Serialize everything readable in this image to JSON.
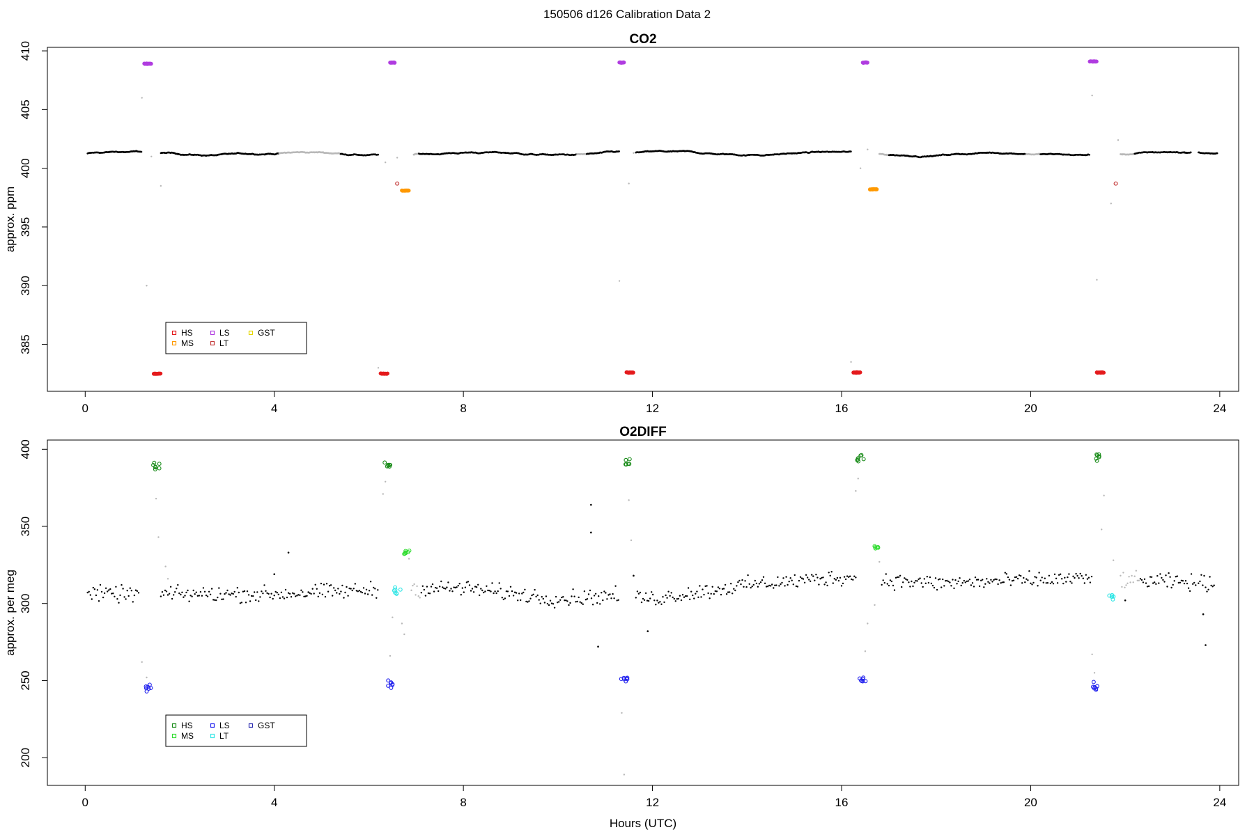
{
  "figure": {
    "title": "150506   d126   Calibration Data 2"
  },
  "colors": {
    "base": "#000000",
    "grey": "#b8b8b8"
  },
  "chart_data": [
    {
      "id": "co2",
      "type": "scatter",
      "title": "CO2",
      "xlabel": "",
      "ylabel": "approx. ppm",
      "xlim": [
        -0.8,
        24.4
      ],
      "ylim": [
        381,
        410.3
      ],
      "xticks": [
        0,
        4,
        8,
        12,
        16,
        20,
        24
      ],
      "yticks": [
        385,
        390,
        395,
        400,
        405,
        410
      ],
      "legend": {
        "placement": "bottom-left",
        "entries": [
          {
            "label": "HS",
            "color": "#e41a1c"
          },
          {
            "label": "MS",
            "color": "#ff9900"
          },
          {
            "label": "LS",
            "color": "#b03ce0"
          },
          {
            "label": "LT",
            "color": "#c43a3a"
          },
          {
            "label": "GST",
            "color": "#e6d800"
          }
        ]
      },
      "baseline": {
        "segments": [
          [
            0.05,
            1.2
          ],
          [
            1.6,
            6.2
          ],
          [
            6.95,
            11.3
          ],
          [
            11.65,
            16.2
          ],
          [
            16.8,
            21.25
          ],
          [
            21.9,
            23.4
          ],
          [
            23.55,
            23.95
          ]
        ],
        "base": 401.25,
        "amp": 0.2,
        "grey_stretches": [
          [
            4.1,
            5.4
          ],
          [
            6.8,
            7.05
          ],
          [
            10.4,
            10.6
          ],
          [
            16.7,
            17.0
          ],
          [
            19.9,
            20.2
          ],
          [
            21.75,
            22.2
          ]
        ]
      },
      "series": [
        {
          "name": "HS",
          "color": "#e41a1c",
          "x_ranges": [
            [
              1.45,
              1.6
            ],
            [
              6.25,
              6.4
            ],
            [
              11.45,
              11.6
            ],
            [
              16.25,
              16.4
            ],
            [
              21.4,
              21.55
            ]
          ],
          "y": [
            382.5,
            382.5,
            382.6,
            382.6,
            382.6
          ]
        },
        {
          "name": "LS",
          "color": "#b03ce0",
          "x_ranges": [
            [
              1.25,
              1.4
            ],
            [
              6.45,
              6.55
            ],
            [
              11.3,
              11.4
            ],
            [
              16.45,
              16.55
            ],
            [
              21.25,
              21.4
            ]
          ],
          "y": [
            408.9,
            409.0,
            409.0,
            409.0,
            409.1
          ]
        },
        {
          "name": "MS",
          "color": "#ff9900",
          "x_ranges": [
            [
              6.7,
              6.85
            ],
            [
              16.6,
              16.75
            ]
          ],
          "y": [
            398.1,
            398.2
          ]
        },
        {
          "name": "LT",
          "color": "#c43a3a",
          "points": [
            [
              6.6,
              398.7
            ],
            [
              21.8,
              398.7
            ]
          ]
        }
      ],
      "transitions": [
        [
          1.2,
          406.0
        ],
        [
          1.3,
          390.0
        ],
        [
          1.4,
          401.0
        ],
        [
          1.6,
          398.5
        ],
        [
          6.2,
          383.0
        ],
        [
          6.35,
          400.5
        ],
        [
          6.6,
          400.9
        ],
        [
          11.3,
          390.4
        ],
        [
          11.5,
          398.7
        ],
        [
          11.6,
          401.3
        ],
        [
          16.2,
          383.5
        ],
        [
          16.4,
          400.0
        ],
        [
          16.55,
          401.6
        ],
        [
          21.3,
          406.2
        ],
        [
          21.4,
          390.5
        ],
        [
          21.7,
          397.0
        ],
        [
          21.85,
          402.4
        ]
      ]
    },
    {
      "id": "o2diff",
      "type": "scatter",
      "title": "O2DIFF",
      "xlabel": "Hours (UTC)",
      "ylabel": "approx. per meg",
      "xlim": [
        -0.8,
        24.4
      ],
      "ylim": [
        182,
        406
      ],
      "xticks": [
        0,
        4,
        8,
        12,
        16,
        20,
        24
      ],
      "yticks": [
        200,
        250,
        300,
        350,
        400
      ],
      "legend": {
        "placement": "bottom-left",
        "entries": [
          {
            "label": "HS",
            "color": "#1a8c1a"
          },
          {
            "label": "MS",
            "color": "#33dd33"
          },
          {
            "label": "LS",
            "color": "#2222ee"
          },
          {
            "label": "LT",
            "color": "#33e6e6"
          },
          {
            "label": "GST",
            "color": "#2b2bb0"
          }
        ]
      },
      "baseline": {
        "segments": [
          [
            0.05,
            1.15
          ],
          [
            1.6,
            6.2
          ],
          [
            6.9,
            11.3
          ],
          [
            11.65,
            16.3
          ],
          [
            16.85,
            21.3
          ],
          [
            21.9,
            23.5
          ],
          [
            23.55,
            23.9
          ]
        ],
        "trend": [
          [
            0,
            306
          ],
          [
            4,
            306
          ],
          [
            6.2,
            309
          ],
          [
            8,
            310
          ],
          [
            10,
            303
          ],
          [
            11.2,
            305
          ],
          [
            12,
            303
          ],
          [
            14,
            312
          ],
          [
            16,
            317
          ],
          [
            18,
            313
          ],
          [
            21,
            316
          ],
          [
            23.9,
            313
          ]
        ],
        "scatter": 5,
        "grey_stretches": [
          [
            6.85,
            7.1
          ],
          [
            21.85,
            22.3
          ]
        ],
        "outliers": [
          [
            4.3,
            333
          ],
          [
            4.0,
            319
          ],
          [
            10.7,
            364
          ],
          [
            10.7,
            346
          ],
          [
            10.85,
            272
          ],
          [
            11.6,
            318
          ],
          [
            11.9,
            282
          ],
          [
            23.7,
            273
          ],
          [
            23.65,
            293
          ],
          [
            22.0,
            302
          ]
        ]
      },
      "series": [
        {
          "name": "HS",
          "color": "#1a8c1a",
          "centers": [
            [
              1.5,
              390
            ],
            [
              6.4,
              390
            ],
            [
              11.45,
              391
            ],
            [
              16.4,
              394
            ],
            [
              21.45,
              395
            ]
          ],
          "spread": 4
        },
        {
          "name": "LS",
          "color": "#2222ee",
          "centers": [
            [
              1.35,
              245
            ],
            [
              6.45,
              247
            ],
            [
              11.4,
              251
            ],
            [
              16.45,
              250
            ],
            [
              21.35,
              246
            ]
          ],
          "spread": 4
        },
        {
          "name": "MS",
          "color": "#33dd33",
          "centers": [
            [
              6.8,
              333
            ],
            [
              16.75,
              336
            ]
          ],
          "spread": 2
        },
        {
          "name": "LT",
          "color": "#33e6e6",
          "centers": [
            [
              6.6,
              308
            ],
            [
              21.7,
              305
            ]
          ],
          "spread": 3
        }
      ],
      "transitions": [
        [
          1.2,
          262
        ],
        [
          1.3,
          252
        ],
        [
          1.5,
          368
        ],
        [
          1.55,
          343
        ],
        [
          1.7,
          324
        ],
        [
          1.75,
          316
        ],
        [
          6.3,
          371
        ],
        [
          6.35,
          379
        ],
        [
          6.45,
          266
        ],
        [
          6.5,
          291
        ],
        [
          6.7,
          287
        ],
        [
          6.75,
          280
        ],
        [
          6.85,
          329
        ],
        [
          11.35,
          229
        ],
        [
          11.4,
          189
        ],
        [
          11.5,
          367
        ],
        [
          11.55,
          341
        ],
        [
          16.3,
          373
        ],
        [
          16.35,
          381
        ],
        [
          16.5,
          269
        ],
        [
          16.55,
          287
        ],
        [
          16.7,
          299
        ],
        [
          16.8,
          327
        ],
        [
          21.3,
          267
        ],
        [
          21.35,
          255
        ],
        [
          21.5,
          348
        ],
        [
          21.55,
          370
        ],
        [
          21.75,
          328
        ]
      ]
    }
  ]
}
